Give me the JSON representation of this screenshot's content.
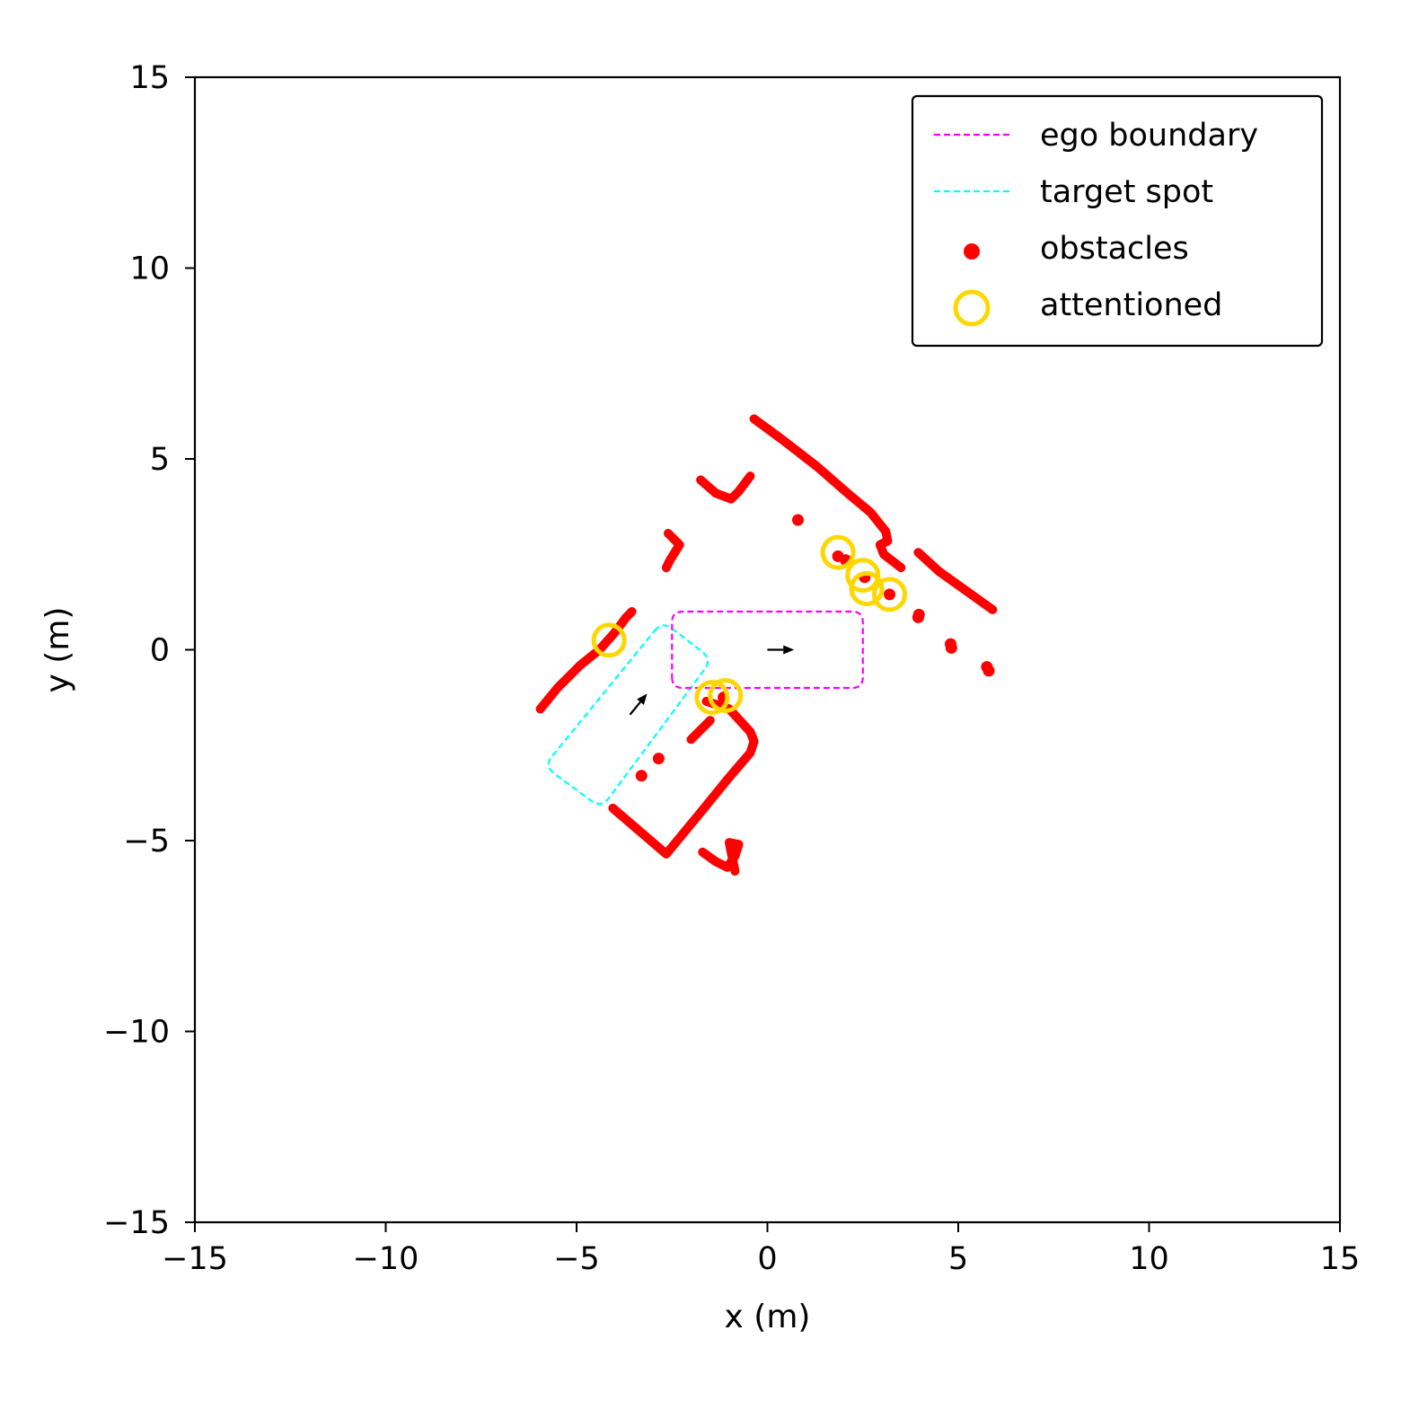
{
  "chart_data": {
    "type": "scatter",
    "title": "",
    "xlabel": "x (m)",
    "ylabel": "y (m)",
    "xlim": [
      -15,
      15
    ],
    "ylim": [
      -15,
      15
    ],
    "xticks": [
      -15,
      -10,
      -5,
      0,
      5,
      10,
      15
    ],
    "yticks": [
      -15,
      -10,
      -5,
      0,
      5,
      10,
      15
    ],
    "xtick_labels": [
      "−15",
      "−10",
      "−5",
      "0",
      "5",
      "10",
      "15"
    ],
    "ytick_labels": [
      "−15",
      "−10",
      "−5",
      "0",
      "5",
      "10",
      "15"
    ],
    "grid": false,
    "legend_position": "top-right",
    "legend": [
      {
        "label": "ego boundary",
        "kind": "dashed-line",
        "color": "#ff00ff"
      },
      {
        "label": "target spot",
        "kind": "dashed-line",
        "color": "#00ffff"
      },
      {
        "label": "obstacles",
        "kind": "dot",
        "color": "#ff0000"
      },
      {
        "label": "attentioned",
        "kind": "ring",
        "color": "#ffd700"
      }
    ],
    "ego_boundary": {
      "color": "#ff00ff",
      "polygon": [
        [
          -2.5,
          -1.0
        ],
        [
          2.5,
          -1.0
        ],
        [
          2.5,
          1.0
        ],
        [
          -2.5,
          1.0
        ]
      ],
      "heading_arrow": {
        "from": [
          0.0,
          0.0
        ],
        "to": [
          0.7,
          0.0
        ]
      }
    },
    "target_spot": {
      "color": "#00ffff",
      "polygon": [
        [
          -2.75,
          0.75
        ],
        [
          -1.45,
          -0.25
        ],
        [
          -4.35,
          -4.15
        ],
        [
          -5.85,
          -3.05
        ]
      ],
      "heading_arrow": {
        "from": [
          -3.6,
          -1.7
        ],
        "to": [
          -3.15,
          -1.15
        ]
      }
    },
    "obstacles": {
      "color": "#ff0000",
      "polylines": [
        [
          [
            -0.35,
            6.05
          ],
          [
            0.4,
            5.5
          ],
          [
            1.3,
            4.8
          ],
          [
            2.1,
            4.1
          ],
          [
            2.7,
            3.6
          ],
          [
            3.1,
            3.1
          ],
          [
            3.15,
            2.85
          ],
          [
            2.95,
            2.75
          ],
          [
            3.05,
            2.5
          ],
          [
            3.5,
            2.15
          ]
        ],
        [
          [
            3.95,
            2.55
          ],
          [
            4.5,
            2.05
          ],
          [
            5.2,
            1.55
          ],
          [
            5.9,
            1.05
          ]
        ],
        [
          [
            -1.75,
            4.45
          ],
          [
            -1.35,
            4.1
          ],
          [
            -0.95,
            3.95
          ],
          [
            -0.75,
            4.15
          ],
          [
            -0.45,
            4.55
          ]
        ],
        [
          [
            -2.6,
            3.05
          ],
          [
            -2.3,
            2.75
          ],
          [
            -2.55,
            2.35
          ],
          [
            -2.65,
            2.15
          ]
        ],
        [
          [
            -5.95,
            -1.55
          ],
          [
            -5.5,
            -1.0
          ],
          [
            -4.9,
            -0.4
          ],
          [
            -4.4,
            0.0
          ],
          [
            -4.0,
            0.45
          ],
          [
            -3.7,
            0.85
          ],
          [
            -3.55,
            1.0
          ]
        ],
        [
          [
            -1.6,
            -1.35
          ],
          [
            -1.0,
            -1.55
          ],
          [
            -0.45,
            -2.15
          ],
          [
            -0.35,
            -2.4
          ],
          [
            -0.45,
            -2.7
          ],
          [
            -1.05,
            -3.4
          ],
          [
            -1.7,
            -4.2
          ],
          [
            -2.65,
            -5.35
          ],
          [
            -4.05,
            -4.15
          ]
        ],
        [
          [
            -1.7,
            -5.3
          ],
          [
            -1.35,
            -5.55
          ],
          [
            -1.05,
            -5.7
          ],
          [
            -0.85,
            -5.4
          ],
          [
            -0.75,
            -5.1
          ],
          [
            -1.0,
            -5.05
          ],
          [
            -0.85,
            -5.8
          ]
        ],
        [
          [
            -2.0,
            -2.35
          ],
          [
            -1.65,
            -2.0
          ],
          [
            -1.5,
            -1.85
          ]
        ]
      ],
      "points": [
        [
          0.8,
          3.4
        ],
        [
          3.95,
          0.85
        ],
        [
          3.97,
          0.92
        ],
        [
          4.8,
          0.15
        ],
        [
          4.82,
          0.05
        ],
        [
          5.75,
          -0.45
        ],
        [
          5.8,
          -0.55
        ],
        [
          -2.85,
          -2.85
        ],
        [
          -3.3,
          -3.3
        ],
        [
          -1.15,
          -1.25
        ],
        [
          1.85,
          2.45
        ],
        [
          2.05,
          2.35
        ],
        [
          2.55,
          1.9
        ],
        [
          3.2,
          1.45
        ]
      ]
    },
    "attentioned": {
      "color": "#ffd700",
      "points": [
        [
          -4.15,
          0.25
        ],
        [
          1.85,
          2.55
        ],
        [
          2.5,
          1.95
        ],
        [
          2.6,
          1.6
        ],
        [
          3.2,
          1.45
        ],
        [
          -1.45,
          -1.25
        ],
        [
          -1.1,
          -1.2
        ]
      ]
    }
  }
}
